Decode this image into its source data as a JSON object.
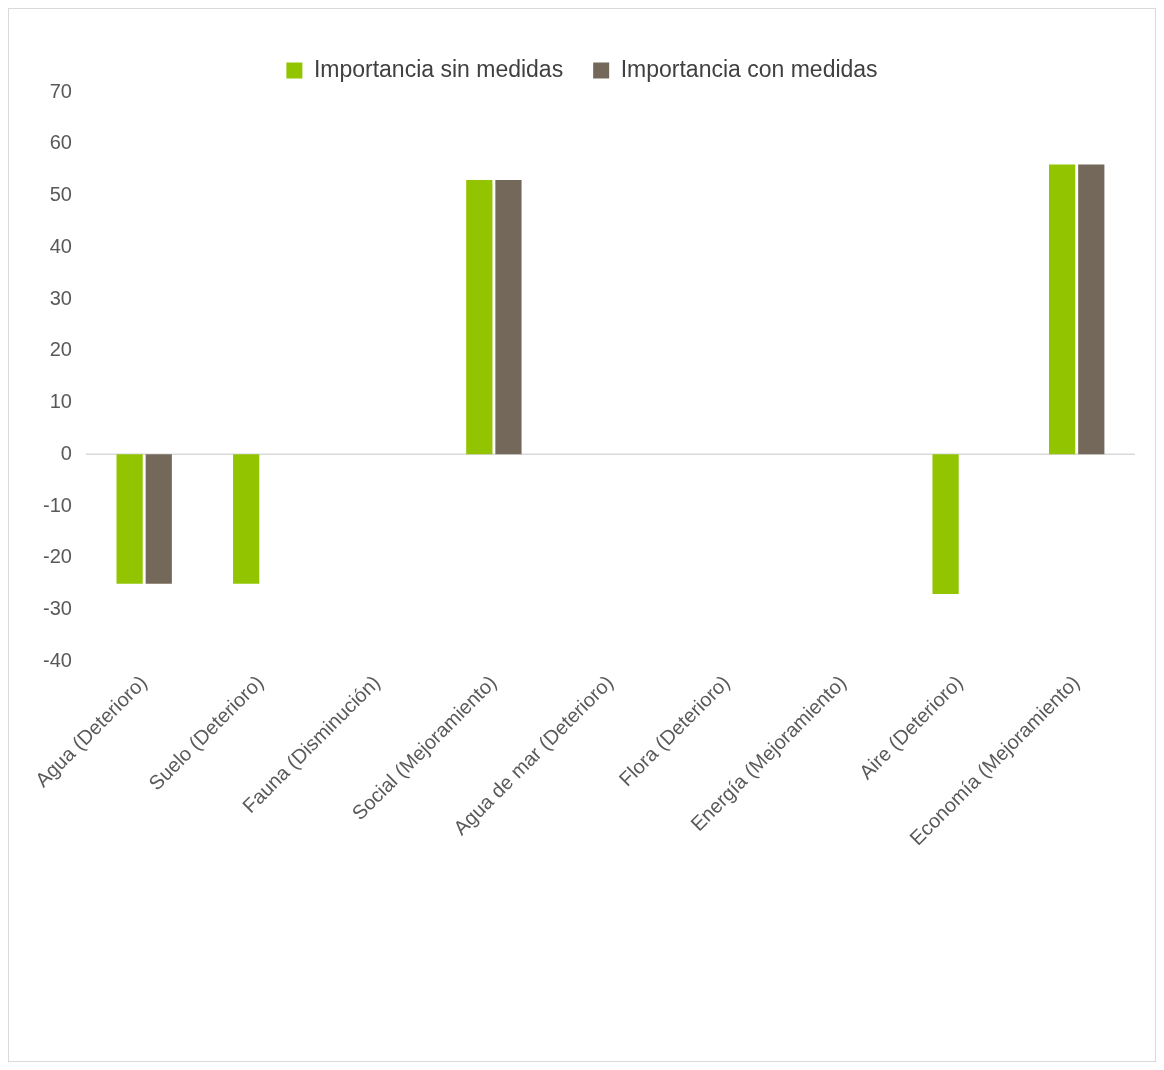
{
  "chart_data": {
    "type": "bar",
    "categories": [
      "Agua (Deterioro)",
      "Suelo (Deterioro)",
      "Fauna (Disminución)",
      "Social (Mejoramiento)",
      "Agua de mar (Deterioro)",
      "Flora (Deterioro)",
      "Energía (Mejoramiento)",
      "Aire (Deterioro)",
      "Economía (Mejoramiento)"
    ],
    "series": [
      {
        "name": "Importancia sin medidas",
        "color": "#92c400",
        "values": [
          -25,
          -25,
          0,
          53,
          0,
          0,
          0,
          -27,
          56
        ]
      },
      {
        "name": "Importancia con medidas",
        "color": "#736859",
        "values": [
          -25,
          0,
          0,
          53,
          0,
          0,
          0,
          0,
          56
        ]
      }
    ],
    "ylim": [
      -40,
      70
    ],
    "yticks": [
      -40,
      -30,
      -20,
      -10,
      0,
      10,
      20,
      30,
      40,
      50,
      60,
      70
    ],
    "grid": false,
    "ref_lines": [
      {
        "axis": "y",
        "value": 0,
        "color": "#d9d9d9"
      }
    ],
    "legend": "top"
  }
}
